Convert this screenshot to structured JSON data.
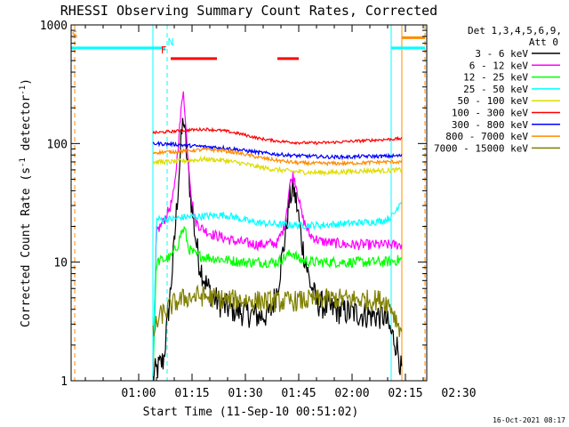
{
  "chart_data": {
    "type": "line",
    "title": "RHESSI Observing Summary Count Rates, Corrected",
    "xlabel": "Start Time (11-Sep-10 00:51:02)",
    "ylabel": "Corrected Count Rate (s-1 detector-1)",
    "ylabel_parts": [
      "Corrected Count Rate (s",
      "-1",
      " detector",
      "-1",
      ")"
    ],
    "y_scale": "log",
    "ylim": [
      1,
      1000
    ],
    "xlim_minutes": [
      -18,
      82
    ],
    "x_start": "00:51:02",
    "x_ticks": [
      {
        "t": 1,
        "label": "01:00"
      },
      {
        "t": 16,
        "label": "01:15"
      },
      {
        "t": 31,
        "label": "01:30"
      },
      {
        "t": 46,
        "label": "01:45"
      },
      {
        "t": 61,
        "label": "02:00"
      },
      {
        "t": 76,
        "label": "02:15"
      },
      {
        "t": 91,
        "label": "02:30"
      }
    ],
    "y_ticks": [
      {
        "v": 1,
        "label": "1"
      },
      {
        "v": 10,
        "label": "10"
      },
      {
        "v": 100,
        "label": "100"
      },
      {
        "v": 1000,
        "label": "1000"
      }
    ],
    "legend": {
      "placement": "right",
      "header": [
        "Det 1,3,4,5,6,9,",
        "Att 0"
      ]
    },
    "series": [
      {
        "name": "3 - 6 keV",
        "color": "#000000",
        "points": [
          [
            5,
            1.1
          ],
          [
            8,
            1.5
          ],
          [
            9,
            3
          ],
          [
            10,
            6
          ],
          [
            11,
            14
          ],
          [
            12,
            40
          ],
          [
            13,
            110
          ],
          [
            13.6,
            170
          ],
          [
            14,
            120
          ],
          [
            15,
            55
          ],
          [
            16,
            28
          ],
          [
            17,
            16
          ],
          [
            18,
            10
          ],
          [
            19,
            8
          ],
          [
            20,
            6.5
          ],
          [
            22,
            5
          ],
          [
            25,
            4.2
          ],
          [
            30,
            3.8
          ],
          [
            35,
            3.5
          ],
          [
            38,
            3.7
          ],
          [
            40,
            6
          ],
          [
            42,
            15
          ],
          [
            43.5,
            35
          ],
          [
            44.5,
            42
          ],
          [
            45.5,
            30
          ],
          [
            47,
            14
          ],
          [
            49,
            7
          ],
          [
            51,
            4.6
          ],
          [
            55,
            4
          ],
          [
            60,
            3.8
          ],
          [
            65,
            3.6
          ],
          [
            70,
            3.5
          ],
          [
            71,
            3
          ],
          [
            72,
            2.5
          ],
          [
            73,
            2.2
          ],
          [
            74,
            1.8
          ],
          [
            75,
            1.1
          ]
        ]
      },
      {
        "name": "6 - 12 keV",
        "color": "#ff00ff",
        "points": [
          [
            5,
            1.1
          ],
          [
            6,
            18
          ],
          [
            8,
            22
          ],
          [
            10,
            30
          ],
          [
            11,
            40
          ],
          [
            12,
            90
          ],
          [
            13,
            200
          ],
          [
            13.6,
            300
          ],
          [
            14,
            170
          ],
          [
            15,
            70
          ],
          [
            16,
            32
          ],
          [
            17,
            22
          ],
          [
            19,
            19
          ],
          [
            22,
            17
          ],
          [
            28,
            15
          ],
          [
            35,
            14
          ],
          [
            40,
            14.5
          ],
          [
            42,
            20
          ],
          [
            43.5,
            45
          ],
          [
            44.5,
            55
          ],
          [
            45.5,
            42
          ],
          [
            47,
            24
          ],
          [
            49,
            17
          ],
          [
            52,
            15
          ],
          [
            60,
            14
          ],
          [
            70,
            14
          ],
          [
            75,
            14
          ]
        ]
      },
      {
        "name": "12 - 25 keV",
        "color": "#00ff00",
        "points": [
          [
            5,
            1.1
          ],
          [
            6,
            10
          ],
          [
            10,
            11
          ],
          [
            12,
            14
          ],
          [
            13,
            18
          ],
          [
            14,
            19
          ],
          [
            15,
            13
          ],
          [
            17,
            11.5
          ],
          [
            20,
            11
          ],
          [
            25,
            10.5
          ],
          [
            30,
            10
          ],
          [
            40,
            10
          ],
          [
            43,
            11.5
          ],
          [
            44.5,
            12
          ],
          [
            46,
            10.5
          ],
          [
            50,
            10
          ],
          [
            60,
            10
          ],
          [
            70,
            10
          ],
          [
            75,
            10.5
          ]
        ]
      },
      {
        "name": "25 - 50 keV",
        "color": "#00ffff",
        "points": [
          [
            5,
            1.1
          ],
          [
            6,
            23
          ],
          [
            10,
            23
          ],
          [
            14,
            24
          ],
          [
            20,
            24.5
          ],
          [
            25,
            25
          ],
          [
            28,
            24
          ],
          [
            32,
            22
          ],
          [
            38,
            21
          ],
          [
            45,
            20.5
          ],
          [
            52,
            20.5
          ],
          [
            58,
            21
          ],
          [
            63,
            21.5
          ],
          [
            68,
            22
          ],
          [
            70,
            22.5
          ],
          [
            72,
            24
          ],
          [
            73,
            26
          ],
          [
            74,
            30
          ],
          [
            75,
            34
          ]
        ]
      },
      {
        "name": "50 - 100 keV",
        "color": "#dddd00",
        "points": [
          [
            5,
            70
          ],
          [
            10,
            70
          ],
          [
            15,
            72
          ],
          [
            20,
            74
          ],
          [
            25,
            72
          ],
          [
            30,
            68
          ],
          [
            35,
            63
          ],
          [
            40,
            60
          ],
          [
            45,
            58
          ],
          [
            50,
            57
          ],
          [
            55,
            57
          ],
          [
            60,
            58
          ],
          [
            65,
            59
          ],
          [
            70,
            59
          ],
          [
            75,
            60
          ]
        ]
      },
      {
        "name": "100 - 300 keV",
        "color": "#ff0000",
        "points": [
          [
            5,
            123
          ],
          [
            10,
            126
          ],
          [
            15,
            130
          ],
          [
            20,
            132
          ],
          [
            25,
            128
          ],
          [
            30,
            120
          ],
          [
            35,
            110
          ],
          [
            40,
            105
          ],
          [
            45,
            102
          ],
          [
            50,
            101
          ],
          [
            55,
            102
          ],
          [
            60,
            104
          ],
          [
            65,
            106
          ],
          [
            70,
            108
          ],
          [
            75,
            110
          ]
        ]
      },
      {
        "name": "300 - 800 keV",
        "color": "#0000ff",
        "points": [
          [
            5,
            100
          ],
          [
            10,
            99
          ],
          [
            15,
            96
          ],
          [
            20,
            94
          ],
          [
            25,
            92
          ],
          [
            30,
            88
          ],
          [
            35,
            84
          ],
          [
            40,
            81
          ],
          [
            45,
            79
          ],
          [
            50,
            78
          ],
          [
            55,
            77
          ],
          [
            60,
            77
          ],
          [
            65,
            78
          ],
          [
            70,
            78
          ],
          [
            75,
            79
          ]
        ]
      },
      {
        "name": "800 - 7000 keV",
        "color": "#ff8c00",
        "points": [
          [
            5,
            84
          ],
          [
            10,
            85
          ],
          [
            15,
            87
          ],
          [
            20,
            89
          ],
          [
            25,
            87
          ],
          [
            30,
            82
          ],
          [
            35,
            76
          ],
          [
            40,
            72
          ],
          [
            45,
            69
          ],
          [
            50,
            68
          ],
          [
            55,
            68
          ],
          [
            60,
            68
          ],
          [
            65,
            69
          ],
          [
            70,
            70
          ],
          [
            75,
            70
          ]
        ]
      },
      {
        "name": "7000 - 15000 keV",
        "color": "#808000",
        "points": [
          [
            5,
            2.5
          ],
          [
            7,
            3.5
          ],
          [
            9,
            4
          ],
          [
            11,
            4.5
          ],
          [
            14,
            5
          ],
          [
            18,
            5.2
          ],
          [
            22,
            5
          ],
          [
            26,
            4.8
          ],
          [
            30,
            4.8
          ],
          [
            35,
            4.7
          ],
          [
            40,
            4.6
          ],
          [
            45,
            4.7
          ],
          [
            50,
            4.8
          ],
          [
            55,
            4.9
          ],
          [
            60,
            4.9
          ],
          [
            65,
            4.8
          ],
          [
            70,
            4.8
          ],
          [
            72,
            4.2
          ],
          [
            73,
            3.5
          ],
          [
            74,
            3
          ],
          [
            75,
            2.6
          ]
        ]
      }
    ],
    "flag_letters": [
      {
        "label": "S",
        "t": -17,
        "color": "#ff8c00"
      },
      {
        "label": "N",
        "t": 10,
        "color": "#00ffff"
      },
      {
        "label": "F",
        "t": 8,
        "color": "#ff0000"
      }
    ],
    "flag_bars": [
      {
        "t0": -18,
        "t1": 8.5,
        "level": 640,
        "color": "#00ffff"
      },
      {
        "t0": 72,
        "t1": 81.5,
        "level": 640,
        "color": "#00ffff"
      },
      {
        "t0": 75,
        "t1": 81.5,
        "level": 780,
        "color": "#ff8c00"
      },
      {
        "t0": 10,
        "t1": 23,
        "level": 520,
        "color": "#ff0000"
      },
      {
        "t0": 40,
        "t1": 46,
        "level": 520,
        "color": "#ff0000"
      }
    ],
    "vertical_lines": [
      {
        "t": -17,
        "color": "#ff8c00",
        "style": "dashed"
      },
      {
        "t": 5,
        "color": "#00ffff",
        "style": "solid"
      },
      {
        "t": 9,
        "color": "#00ffff",
        "style": "dashed"
      },
      {
        "t": 72,
        "color": "#00ffff",
        "style": "solid"
      },
      {
        "t": 75,
        "color": "#ff8c00",
        "style": "solid"
      },
      {
        "t": 81.5,
        "color": "#ff8c00",
        "style": "dashed"
      }
    ]
  },
  "footer_timestamp": "16-Oct-2021 08:17"
}
